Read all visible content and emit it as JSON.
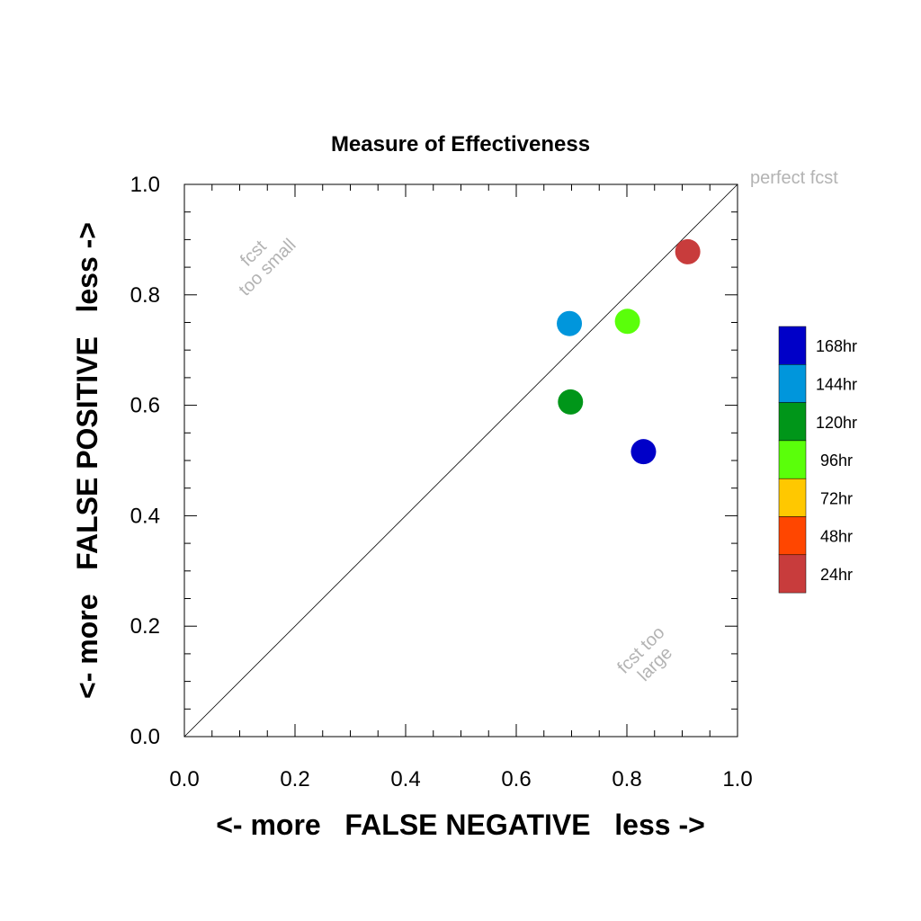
{
  "chart_data": {
    "type": "scatter",
    "title": "Measure of Effectiveness",
    "xlabel": "<- more   FALSE NEGATIVE   less ->",
    "ylabel": "<- more   FALSE POSITIVE   less ->",
    "xlim": [
      0,
      1
    ],
    "ylim": [
      0,
      1
    ],
    "x_ticks": [
      "0.0",
      "0.2",
      "0.4",
      "0.6",
      "0.8",
      "1.0"
    ],
    "y_ticks": [
      "0.0",
      "0.2",
      "0.4",
      "0.6",
      "0.8",
      "1.0"
    ],
    "grid": false,
    "diagonal_line": true,
    "annotations": {
      "perfect": "perfect fcst",
      "too_small_line1": "fcst",
      "too_small_line2": "too small",
      "too_large_line1": "fcst too",
      "too_large_line2": "large"
    },
    "legend": {
      "placement": "right",
      "entries": [
        {
          "label": "168hr",
          "color": "#0000c8"
        },
        {
          "label": "144hr",
          "color": "#0096dc"
        },
        {
          "label": "120hr",
          "color": "#009619"
        },
        {
          "label": "96hr",
          "color": "#5aff0a"
        },
        {
          "label": "72hr",
          "color": "#ffc800"
        },
        {
          "label": "48hr",
          "color": "#ff4600"
        },
        {
          "label": "24hr",
          "color": "#c83c3c"
        }
      ]
    },
    "points": [
      {
        "label": "168hr",
        "x": 0.83,
        "y": 0.516,
        "color": "#0000c8"
      },
      {
        "label": "144hr",
        "x": 0.696,
        "y": 0.748,
        "color": "#0096dc"
      },
      {
        "label": "120hr",
        "x": 0.698,
        "y": 0.606,
        "color": "#009619"
      },
      {
        "label": "96hr",
        "x": 0.801,
        "y": 0.752,
        "color": "#5aff0a"
      },
      {
        "label": "24hr",
        "x": 0.91,
        "y": 0.878,
        "color": "#c83c3c"
      }
    ]
  }
}
